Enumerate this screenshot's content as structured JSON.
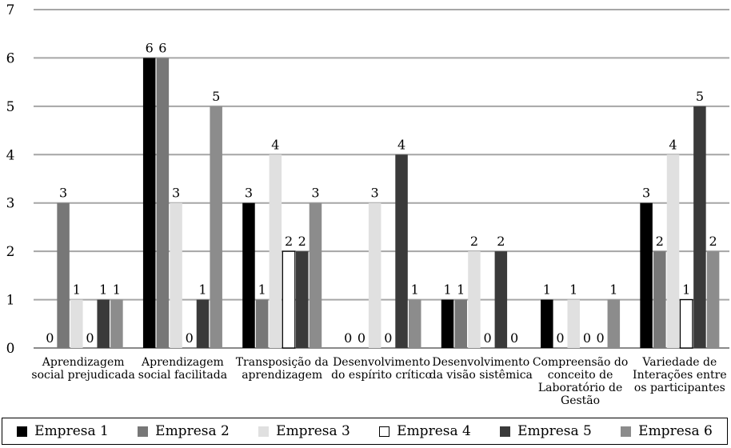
{
  "chart_data": {
    "type": "bar",
    "title": "",
    "xlabel": "",
    "ylabel": "",
    "ylim": [
      0,
      7
    ],
    "yticks": [
      "0",
      "1",
      "2",
      "3",
      "4",
      "5",
      "6",
      "7"
    ],
    "grid": true,
    "legend_position": "bottom",
    "categories": [
      [
        "Aprendizagem",
        "social prejudicada"
      ],
      [
        "Aprendizagem",
        "social facilitada"
      ],
      [
        "Transposição da",
        "aprendizagem"
      ],
      [
        "Desenvolvimento",
        "do espírito crítico"
      ],
      [
        "Desenvolvimento",
        "da visão sistêmica"
      ],
      [
        "Compreensão do",
        "conceito de",
        "Laboratório de",
        "Gestão"
      ],
      [
        "Variedade de",
        "Interações entre",
        "os participantes"
      ]
    ],
    "series": [
      {
        "name": "Empresa 1",
        "color": "#000000",
        "values": [
          0,
          6,
          3,
          0,
          1,
          1,
          3
        ]
      },
      {
        "name": "Empresa 2",
        "color": "#777777",
        "values": [
          3,
          6,
          1,
          0,
          1,
          0,
          2
        ]
      },
      {
        "name": "Empresa 3",
        "color": "#e0e0e0",
        "values": [
          1,
          3,
          4,
          3,
          2,
          1,
          4
        ]
      },
      {
        "name": "Empresa 4",
        "color": "#ffffff",
        "values": [
          0,
          0,
          2,
          0,
          0,
          0,
          1
        ]
      },
      {
        "name": "Empresa 5",
        "color": "#3a3a3a",
        "values": [
          1,
          1,
          2,
          4,
          2,
          0,
          5
        ]
      },
      {
        "name": "Empresa 6",
        "color": "#8c8c8c",
        "values": [
          1,
          5,
          3,
          1,
          0,
          1,
          2
        ]
      }
    ]
  }
}
